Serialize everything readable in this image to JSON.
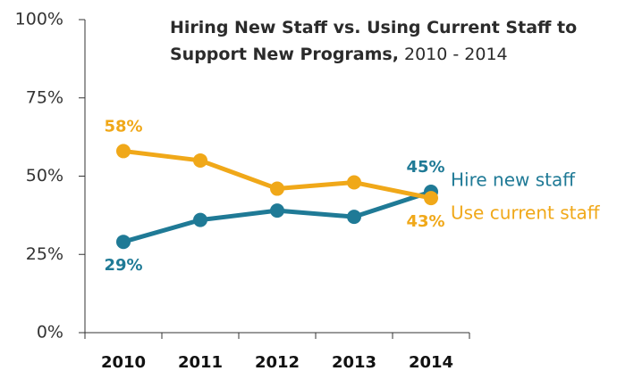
{
  "chart_data": {
    "type": "line",
    "title": "Hiring New Staff vs. Using Current Staff to Support New Programs,",
    "subtitle": "2010 - 2014",
    "categories": [
      "2010",
      "2011",
      "2012",
      "2013",
      "2014"
    ],
    "series": [
      {
        "name": "Hire new staff",
        "color": "#1f7a96",
        "values": [
          29,
          36,
          39,
          37,
          45
        ],
        "value_labels": [
          "29%",
          null,
          null,
          null,
          "45%"
        ]
      },
      {
        "name": "Use current staff",
        "color": "#f0a819",
        "values": [
          58,
          55,
          46,
          48,
          43
        ],
        "value_labels": [
          "58%",
          null,
          null,
          null,
          "43%"
        ]
      }
    ],
    "ylim": [
      0,
      100
    ],
    "yticks": [
      {
        "value": 0,
        "label": "0%"
      },
      {
        "value": 25,
        "label": "25%"
      },
      {
        "value": 50,
        "label": "50%"
      },
      {
        "value": 75,
        "label": "75%"
      },
      {
        "value": 100,
        "label": "100%"
      }
    ]
  }
}
